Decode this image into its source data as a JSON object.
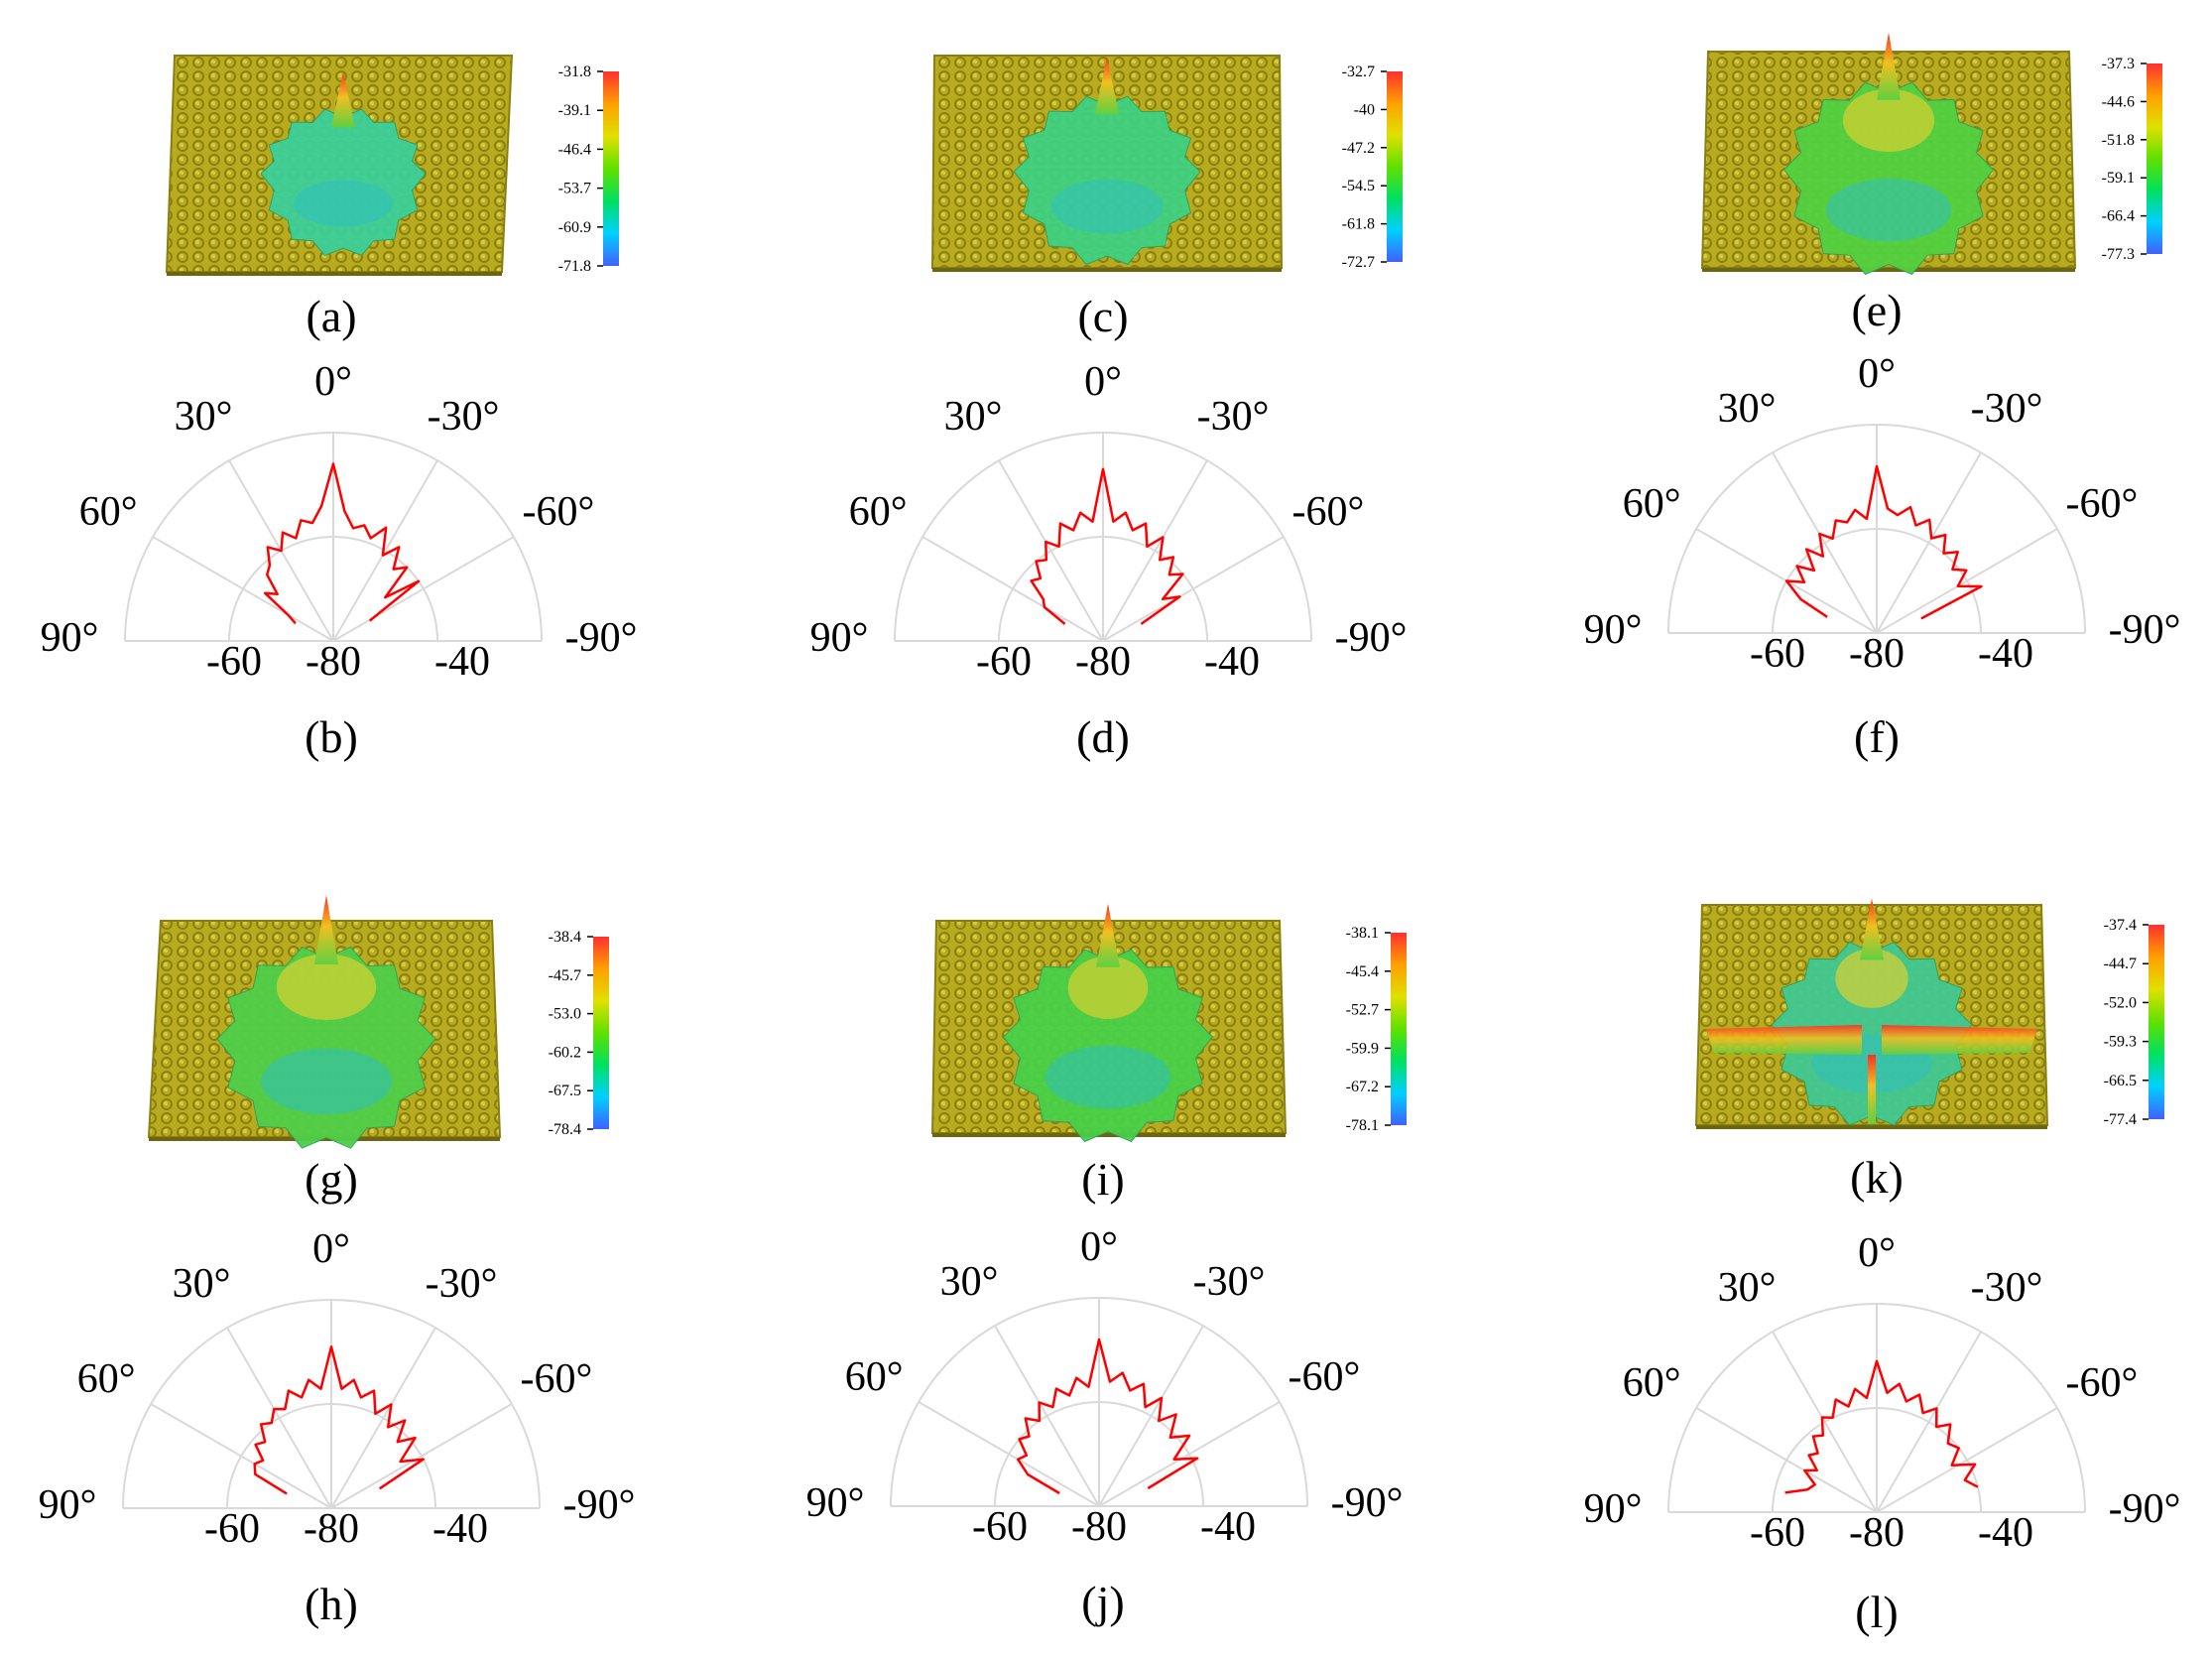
{
  "colors": {
    "surface": "#b8ac1e",
    "surface_dark": "#8a8012",
    "pattern_line": "#d8cd42",
    "polar_grid": "#d9d9d9",
    "polar_trace": "#ff0000",
    "text": "#000000"
  },
  "colorbar_gradient": [
    "#4060ff",
    "#00d0ff",
    "#00e060",
    "#60e000",
    "#e0e000",
    "#ffa000",
    "#ff3030"
  ],
  "chart_data": [
    {
      "id": "a",
      "label": "(a)",
      "type": "heatmap",
      "colorbar_ticks": [
        "-31.8",
        "-39.1",
        "-46.4",
        "-53.7",
        "-60.9",
        "-71.8"
      ],
      "scale_max": -31.8,
      "scale_min": -71.8,
      "hint": {
        "blob_size": 0.7,
        "blob_color": "#3ccf9a",
        "warm": 0.15,
        "wings": false
      }
    },
    {
      "id": "b",
      "label": "(b)",
      "type": "polar",
      "angle_tick_labels": [
        "90°",
        "60°",
        "30°",
        "0°",
        "-30°",
        "-60°",
        "-90°"
      ],
      "radial_tick_labels": [
        "-80",
        "-60",
        "-40"
      ],
      "theta_range_deg": [
        -90,
        90
      ],
      "r_range": [
        -80,
        -40
      ],
      "series": [
        {
          "theta_deg": [
            -61,
            -55,
            -50,
            -45,
            -40,
            -35,
            -30,
            -25,
            -20,
            -15,
            -10,
            -5,
            0,
            5,
            10,
            15,
            20,
            25,
            30,
            35,
            40,
            45,
            50,
            55,
            60,
            65
          ],
          "r": [
            -72,
            -60,
            -67,
            -60,
            -62,
            -58,
            -61,
            -56,
            -59,
            -57,
            -58,
            -55,
            -46,
            -54,
            -57,
            -56,
            -59,
            -57,
            -60,
            -58,
            -61,
            -62,
            -66,
            -64,
            -70,
            -72
          ]
        }
      ]
    },
    {
      "id": "c",
      "label": "(c)",
      "type": "heatmap",
      "colorbar_ticks": [
        "-32.7",
        "-40",
        "-47.2",
        "-54.5",
        "-61.8",
        "-72.7"
      ],
      "scale_max": -32.7,
      "scale_min": -72.7,
      "hint": {
        "blob_size": 0.82,
        "blob_color": "#3fd080",
        "warm": 0.2,
        "wings": false
      }
    },
    {
      "id": "d",
      "label": "(d)",
      "type": "polar",
      "angle_tick_labels": [
        "90°",
        "60°",
        "30°",
        "0°",
        "-30°",
        "-60°",
        "-90°"
      ],
      "radial_tick_labels": [
        "-80",
        "-60",
        "-40"
      ],
      "theta_range_deg": [
        -90,
        90
      ],
      "r_range": [
        -80,
        -40
      ],
      "series": [
        {
          "theta_deg": [
            -66,
            -60,
            -55,
            -50,
            -45,
            -40,
            -35,
            -30,
            -25,
            -20,
            -15,
            -10,
            -5,
            0,
            5,
            10,
            15,
            20,
            25,
            30,
            35,
            40,
            45,
            50,
            55,
            60,
            66
          ],
          "r": [
            -72,
            -63,
            -66,
            -60,
            -62,
            -59,
            -61,
            -57,
            -60,
            -56,
            -58,
            -55,
            -57,
            -47,
            -57,
            -55,
            -58,
            -56,
            -60,
            -58,
            -61,
            -60,
            -63,
            -62,
            -66,
            -67,
            -72
          ]
        }
      ]
    },
    {
      "id": "e",
      "label": "(e)",
      "type": "heatmap",
      "colorbar_ticks": [
        "-37.3",
        "-44.6",
        "-51.8",
        "-59.1",
        "-66.4",
        "-77.3"
      ],
      "scale_max": -37.3,
      "scale_min": -77.3,
      "hint": {
        "blob_size": 0.95,
        "blob_color": "#52d040",
        "warm": 0.45,
        "wings": false
      }
    },
    {
      "id": "f",
      "label": "(f)",
      "type": "polar",
      "angle_tick_labels": [
        "90°",
        "60°",
        "30°",
        "0°",
        "-30°",
        "-60°",
        "-90°"
      ],
      "radial_tick_labels": [
        "-80",
        "-60",
        "-40"
      ],
      "theta_range_deg": [
        -90,
        90
      ],
      "r_range": [
        -80,
        -40
      ],
      "series": [
        {
          "theta_deg": [
            -72,
            -66,
            -60,
            -55,
            -50,
            -45,
            -40,
            -35,
            -30,
            -25,
            -20,
            -15,
            -10,
            -5,
            0,
            5,
            10,
            15,
            20,
            25,
            30,
            35,
            40,
            45,
            50,
            55,
            60,
            66,
            72
          ],
          "r": [
            -71,
            -58,
            -62,
            -59,
            -61,
            -58,
            -60,
            -57,
            -59,
            -56,
            -58,
            -55,
            -57,
            -56,
            -48,
            -58,
            -56,
            -58,
            -57,
            -60,
            -58,
            -62,
            -59,
            -63,
            -60,
            -63,
            -60,
            -64,
            -70
          ]
        }
      ]
    },
    {
      "id": "g",
      "label": "(g)",
      "type": "heatmap",
      "colorbar_ticks": [
        "-38.4",
        "-45.7",
        "-53.0",
        "-60.2",
        "-67.5",
        "-78.4"
      ],
      "scale_max": -38.4,
      "scale_min": -78.4,
      "hint": {
        "blob_size": 1.0,
        "blob_color": "#4fce48",
        "warm": 0.5,
        "wings": false
      }
    },
    {
      "id": "h",
      "label": "(h)",
      "type": "polar",
      "angle_tick_labels": [
        "90°",
        "60°",
        "30°",
        "0°",
        "-30°",
        "-60°",
        "-90°"
      ],
      "radial_tick_labels": [
        "-80",
        "-60",
        "-40"
      ],
      "theta_range_deg": [
        -90,
        90
      ],
      "r_range": [
        -80,
        -40
      ],
      "series": [
        {
          "theta_deg": [
            -68,
            -62,
            -56,
            -50,
            -45,
            -40,
            -35,
            -30,
            -25,
            -20,
            -15,
            -10,
            -5,
            0,
            5,
            10,
            15,
            20,
            25,
            30,
            35,
            40,
            45,
            50,
            55,
            60,
            66,
            72
          ],
          "r": [
            -70,
            -60,
            -64,
            -59,
            -62,
            -58,
            -61,
            -57,
            -60,
            -56,
            -58,
            -55,
            -57,
            -49,
            -57,
            -55,
            -58,
            -56,
            -59,
            -58,
            -60,
            -59,
            -62,
            -61,
            -64,
            -63,
            -64,
            -71
          ]
        }
      ]
    },
    {
      "id": "i",
      "label": "(i)",
      "type": "heatmap",
      "colorbar_ticks": [
        "-38.1",
        "-45.4",
        "-52.7",
        "-59.9",
        "-67.2",
        "-78.1"
      ],
      "scale_max": -38.1,
      "scale_min": -78.1,
      "hint": {
        "blob_size": 0.95,
        "blob_color": "#48d048",
        "warm": 0.35,
        "wings": false
      }
    },
    {
      "id": "j",
      "label": "(j)",
      "type": "polar",
      "angle_tick_labels": [
        "90°",
        "60°",
        "30°",
        "0°",
        "-30°",
        "-60°",
        "-90°"
      ],
      "radial_tick_labels": [
        "-80",
        "-60",
        "-40"
      ],
      "theta_range_deg": [
        -90,
        90
      ],
      "r_range": [
        -80,
        -40
      ],
      "series": [
        {
          "theta_deg": [
            -70,
            -64,
            -58,
            -52,
            -46,
            -40,
            -35,
            -30,
            -25,
            -20,
            -15,
            -10,
            -5,
            0,
            5,
            10,
            15,
            20,
            25,
            30,
            35,
            40,
            45,
            50,
            55,
            60,
            66,
            72
          ],
          "r": [
            -70,
            -59,
            -63,
            -58,
            -61,
            -57,
            -60,
            -56,
            -59,
            -55,
            -57,
            -54,
            -56,
            -48,
            -57,
            -55,
            -58,
            -56,
            -59,
            -57,
            -60,
            -58,
            -61,
            -60,
            -63,
            -62,
            -65,
            -72
          ]
        }
      ]
    },
    {
      "id": "k",
      "label": "(k)",
      "type": "heatmap",
      "colorbar_ticks": [
        "-37.4",
        "-44.7",
        "-52.0",
        "-59.3",
        "-66.5",
        "-77.4"
      ],
      "scale_max": -37.4,
      "scale_min": -77.4,
      "hint": {
        "blob_size": 0.9,
        "blob_color": "#40c890",
        "warm": 0.3,
        "wings": true
      }
    },
    {
      "id": "l",
      "label": "(l)",
      "type": "polar",
      "angle_tick_labels": [
        "90°",
        "60°",
        "30°",
        "0°",
        "-30°",
        "-60°",
        "-90°"
      ],
      "radial_tick_labels": [
        "-80",
        "-60",
        "-40"
      ],
      "theta_range_deg": [
        -90,
        90
      ],
      "r_range": [
        -80,
        -40
      ],
      "series": [
        {
          "theta_deg": [
            -76,
            -70,
            -64,
            -58,
            -52,
            -46,
            -40,
            -35,
            -30,
            -25,
            -20,
            -15,
            -10,
            -5,
            0,
            5,
            10,
            15,
            20,
            25,
            30,
            35,
            40,
            45,
            50,
            55,
            60,
            66,
            72,
            78
          ],
          "r": [
            -60,
            -62,
            -59,
            -63,
            -60,
            -61,
            -58,
            -60,
            -57,
            -59,
            -56,
            -58,
            -55,
            -57,
            -51,
            -58,
            -56,
            -59,
            -57,
            -60,
            -59,
            -62,
            -61,
            -64,
            -63,
            -66,
            -64,
            -67,
            -66,
            -62
          ]
        }
      ]
    }
  ]
}
